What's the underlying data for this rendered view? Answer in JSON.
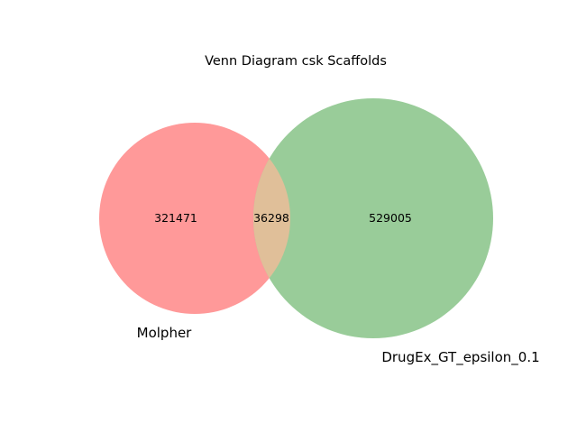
{
  "title": "Venn Diagram csk Scaffolds",
  "sets": [
    {
      "name": "Molpher",
      "only_count": "321471",
      "color": "#ff9999"
    },
    {
      "name": "DrugEx_GT_epsilon_0.1",
      "only_count": "529005",
      "color": "#99cc99"
    }
  ],
  "intersection": {
    "count": "36298",
    "color": "#e0bf99"
  },
  "chart_data": {
    "type": "venn",
    "title": "Venn Diagram csk Scaffolds",
    "sets": [
      "Molpher",
      "DrugEx_GT_epsilon_0.1"
    ],
    "values": {
      "Molpher_only": 321471,
      "DrugEx_GT_epsilon_0.1_only": 529005,
      "both": 36298
    }
  }
}
